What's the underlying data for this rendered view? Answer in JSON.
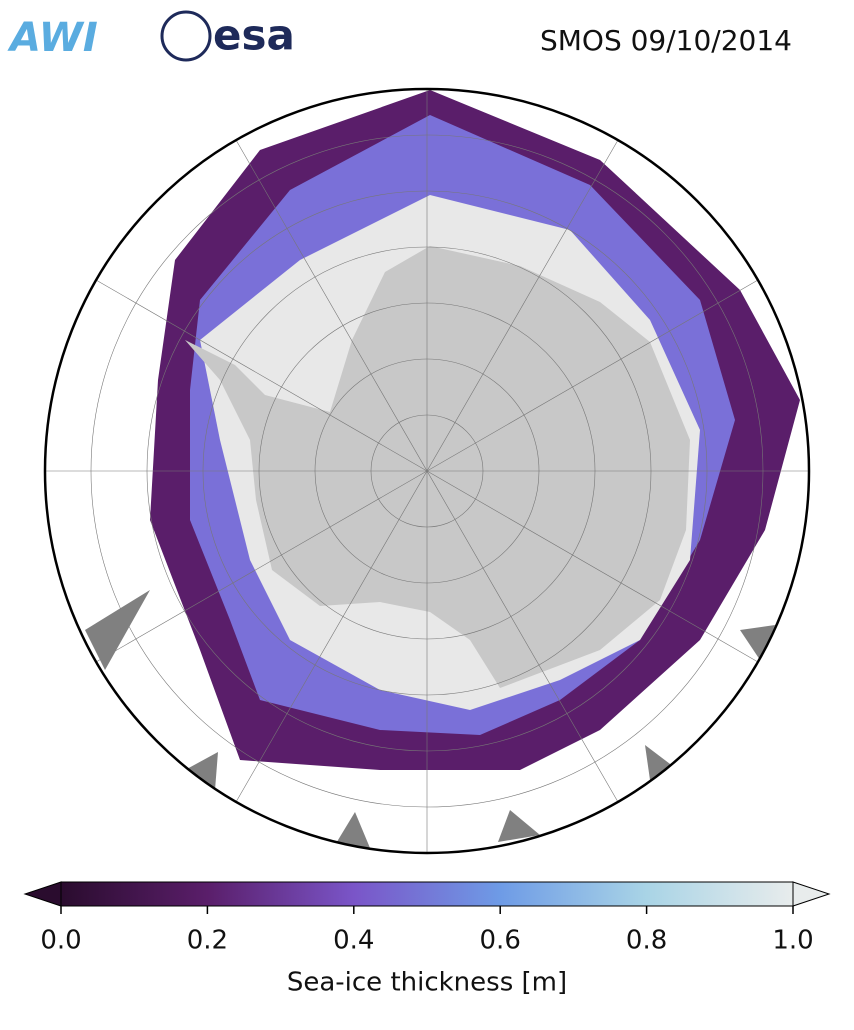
{
  "header": {
    "logos": [
      "AWI",
      "esa"
    ],
    "title": "SMOS 09/10/2014"
  },
  "colorbar": {
    "label": "Sea-ice thickness [m]",
    "lim": [
      0,
      1
    ],
    "ticks": [
      {
        "value": 0,
        "label": "0.0"
      },
      {
        "value": 0.2,
        "label": "0.2"
      },
      {
        "value": 0.4,
        "label": "0.4"
      },
      {
        "value": 0.6,
        "label": "0.6"
      },
      {
        "value": 0.8,
        "label": "0.8"
      },
      {
        "value": 1,
        "label": "1.0"
      }
    ],
    "colors": [
      "#2a0c2e",
      "#5a1e6a",
      "#7a55c8",
      "#6e9be6",
      "#a9d4e6",
      "#e8ecec"
    ]
  }
}
